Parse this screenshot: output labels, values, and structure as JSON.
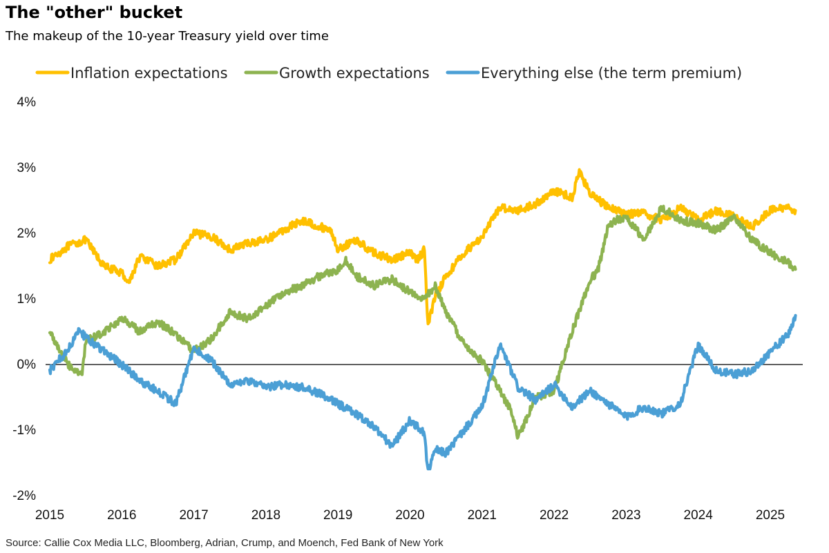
{
  "header": {
    "title": "The \"other\" bucket",
    "subtitle": "The makeup of the 10-year Treasury yield over time"
  },
  "source": "Source: Callie Cox Media LLC, Bloomberg, Adrian, Crump, and Moench, Fed Bank of New York",
  "chart_data": {
    "type": "line",
    "title": "The \"other\" bucket",
    "subtitle": "The makeup of the 10-year Treasury yield over time",
    "xlabel": "",
    "ylabel": "",
    "xlim": [
      2015,
      2025.5
    ],
    "ylim": [
      -2,
      4
    ],
    "x_ticks": [
      "2015",
      "2016",
      "2017",
      "2018",
      "2019",
      "2020",
      "2021",
      "2022",
      "2023",
      "2024",
      "2025"
    ],
    "y_ticks": [
      {
        "value": 4,
        "label": "4%"
      },
      {
        "value": 3,
        "label": "3%"
      },
      {
        "value": 2,
        "label": "2%"
      },
      {
        "value": 1,
        "label": "1%"
      },
      {
        "value": 0,
        "label": "0%"
      },
      {
        "value": -1,
        "label": "-1%"
      },
      {
        "value": -2,
        "label": "-2%"
      }
    ],
    "zero_line": true,
    "grid": false,
    "legend_position": "top",
    "series": [
      {
        "name": "Inflation expectations",
        "color": "#FFC000",
        "x": [
          2015.0,
          2015.25,
          2015.5,
          2015.75,
          2016.0,
          2016.1,
          2016.25,
          2016.5,
          2016.75,
          2017.0,
          2017.25,
          2017.5,
          2017.75,
          2018.0,
          2018.25,
          2018.5,
          2018.75,
          2018.9,
          2019.0,
          2019.25,
          2019.5,
          2019.75,
          2020.0,
          2020.1,
          2020.2,
          2020.25,
          2020.35,
          2020.5,
          2020.75,
          2021.0,
          2021.25,
          2021.5,
          2021.75,
          2022.0,
          2022.25,
          2022.35,
          2022.5,
          2022.75,
          2023.0,
          2023.25,
          2023.5,
          2023.75,
          2024.0,
          2024.25,
          2024.5,
          2024.75,
          2025.0,
          2025.25,
          2025.35
        ],
        "values": [
          1.6,
          1.8,
          1.9,
          1.5,
          1.4,
          1.25,
          1.65,
          1.5,
          1.6,
          2.0,
          1.95,
          1.75,
          1.85,
          1.9,
          2.05,
          2.2,
          2.1,
          2.05,
          1.75,
          1.9,
          1.7,
          1.6,
          1.7,
          1.6,
          1.75,
          0.6,
          1.05,
          1.35,
          1.7,
          1.95,
          2.4,
          2.35,
          2.45,
          2.65,
          2.55,
          2.95,
          2.6,
          2.4,
          2.3,
          2.3,
          2.2,
          2.4,
          2.2,
          2.35,
          2.25,
          2.1,
          2.35,
          2.4,
          2.35
        ]
      },
      {
        "name": "Growth expectations",
        "color": "#8DB350",
        "x": [
          2015.0,
          2015.1,
          2015.25,
          2015.45,
          2015.5,
          2015.75,
          2016.0,
          2016.25,
          2016.5,
          2016.7,
          2016.9,
          2017.0,
          2017.25,
          2017.5,
          2017.75,
          2018.0,
          2018.25,
          2018.5,
          2018.75,
          2019.0,
          2019.1,
          2019.25,
          2019.5,
          2019.75,
          2020.0,
          2020.2,
          2020.35,
          2020.5,
          2020.75,
          2021.0,
          2021.25,
          2021.4,
          2021.5,
          2021.75,
          2022.0,
          2022.25,
          2022.5,
          2022.6,
          2022.75,
          2022.85,
          2023.0,
          2023.25,
          2023.5,
          2023.75,
          2024.0,
          2024.25,
          2024.5,
          2024.75,
          2025.0,
          2025.25,
          2025.35
        ],
        "values": [
          0.5,
          0.3,
          0.0,
          -0.15,
          0.35,
          0.5,
          0.7,
          0.5,
          0.65,
          0.5,
          0.3,
          0.2,
          0.4,
          0.8,
          0.7,
          0.9,
          1.1,
          1.2,
          1.35,
          1.45,
          1.6,
          1.35,
          1.2,
          1.3,
          1.1,
          1.0,
          1.2,
          0.8,
          0.3,
          0.05,
          -0.4,
          -0.7,
          -1.1,
          -0.5,
          -0.4,
          0.5,
          1.3,
          1.4,
          2.1,
          2.2,
          2.25,
          1.9,
          2.4,
          2.2,
          2.15,
          2.05,
          2.25,
          1.9,
          1.7,
          1.55,
          1.45
        ]
      },
      {
        "name": "Everything else (the term premium)",
        "color": "#4B9FD5",
        "x": [
          2015.0,
          2015.1,
          2015.25,
          2015.4,
          2015.5,
          2015.75,
          2016.0,
          2016.25,
          2016.5,
          2016.75,
          2017.0,
          2017.25,
          2017.5,
          2017.75,
          2018.0,
          2018.25,
          2018.5,
          2018.75,
          2019.0,
          2019.25,
          2019.5,
          2019.75,
          2020.0,
          2020.2,
          2020.25,
          2020.35,
          2020.5,
          2020.75,
          2021.0,
          2021.25,
          2021.5,
          2021.75,
          2022.0,
          2022.25,
          2022.5,
          2022.75,
          2023.0,
          2023.25,
          2023.5,
          2023.75,
          2024.0,
          2024.25,
          2024.5,
          2024.75,
          2025.0,
          2025.25,
          2025.35
        ],
        "values": [
          -0.1,
          0.05,
          0.2,
          0.55,
          0.4,
          0.2,
          0.0,
          -0.25,
          -0.4,
          -0.6,
          0.25,
          0.05,
          -0.3,
          -0.25,
          -0.35,
          -0.3,
          -0.35,
          -0.45,
          -0.6,
          -0.75,
          -0.95,
          -1.25,
          -0.85,
          -1.05,
          -1.65,
          -1.3,
          -1.35,
          -1.0,
          -0.65,
          0.3,
          -0.35,
          -0.55,
          -0.3,
          -0.65,
          -0.4,
          -0.6,
          -0.8,
          -0.65,
          -0.75,
          -0.6,
          0.3,
          -0.1,
          -0.15,
          -0.1,
          0.2,
          0.45,
          0.75
        ]
      }
    ]
  }
}
